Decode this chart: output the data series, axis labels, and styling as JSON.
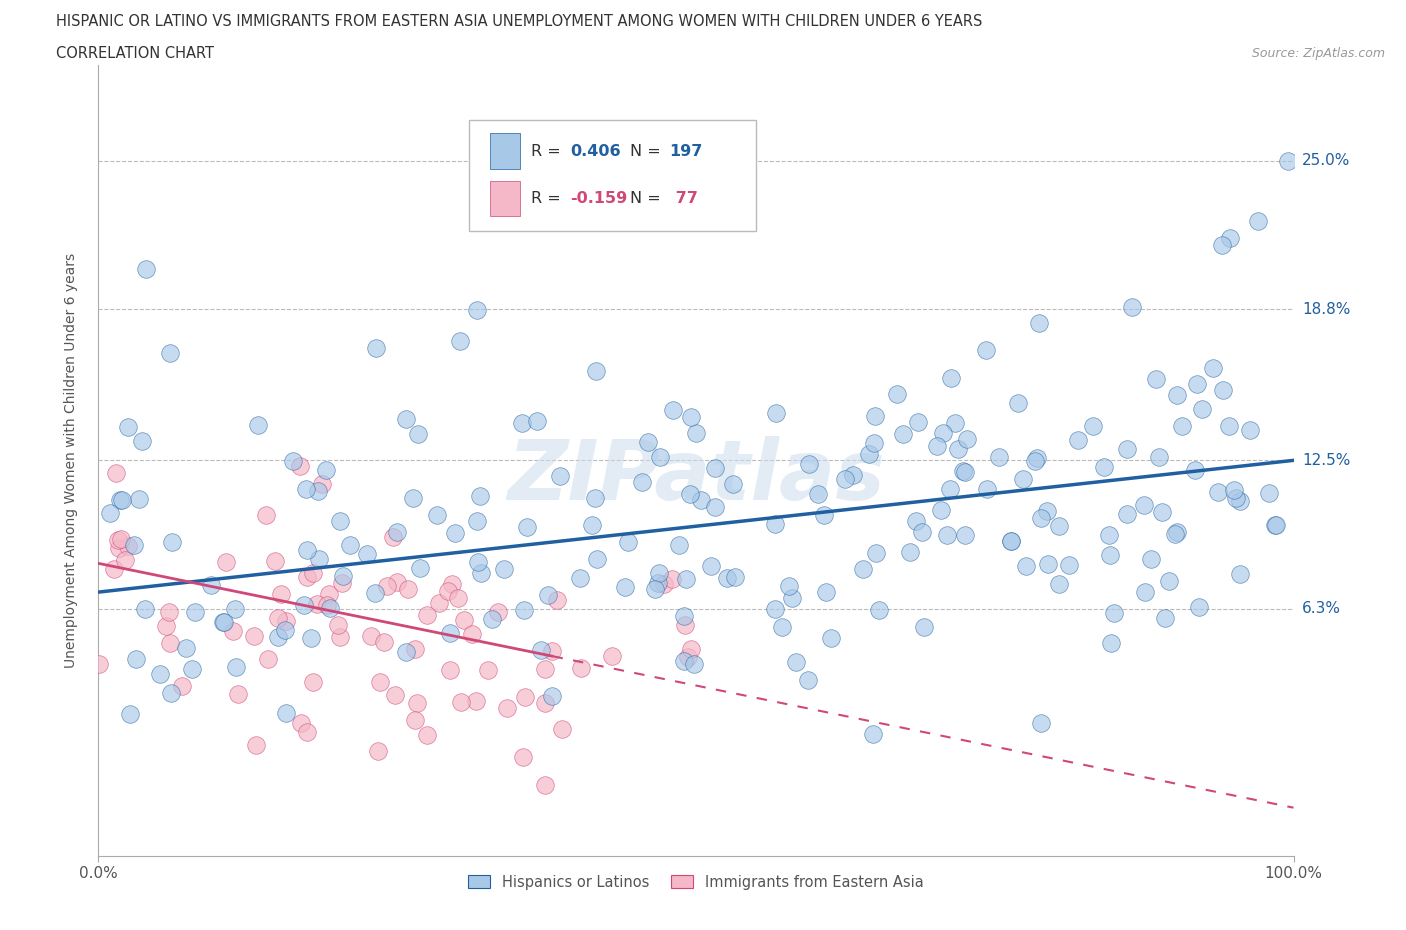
{
  "title_line1": "HISPANIC OR LATINO VS IMMIGRANTS FROM EASTERN ASIA UNEMPLOYMENT AMONG WOMEN WITH CHILDREN UNDER 6 YEARS",
  "title_line2": "CORRELATION CHART",
  "source_text": "Source: ZipAtlas.com",
  "ylabel": "Unemployment Among Women with Children Under 6 years",
  "xlim": [
    0,
    100
  ],
  "ylim": [
    -4,
    29
  ],
  "ytick_vals": [
    6.3,
    12.5,
    18.8,
    25.0
  ],
  "ytick_labels": [
    "6.3%",
    "12.5%",
    "18.8%",
    "25.0%"
  ],
  "blue_color": "#a8c8e8",
  "pink_color": "#f4b8c8",
  "blue_line_color": "#2060a0",
  "pink_line_color": "#d04878",
  "R_blue": 0.406,
  "N_blue": 197,
  "R_pink": -0.159,
  "N_pink": 77,
  "legend_label_blue": "Hispanics or Latinos",
  "legend_label_pink": "Immigrants from Eastern Asia",
  "watermark": "ZIPatlas",
  "background_color": "#ffffff",
  "grid_color": "#bbbbbb",
  "blue_line_start_y": 7.0,
  "blue_line_end_y": 12.5,
  "pink_line_start_y": 8.2,
  "pink_line_end_y": -2.0
}
